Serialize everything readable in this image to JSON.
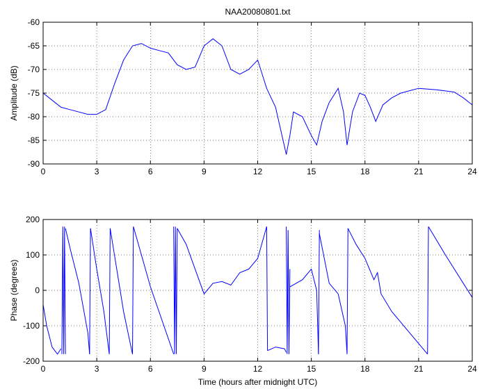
{
  "chart_data": [
    {
      "type": "line",
      "title": "NAA20080801.txt",
      "xlabel": "",
      "ylabel": "Amplitude (dB)",
      "xlim": [
        0,
        24
      ],
      "ylim": [
        -90,
        -60
      ],
      "xticks": [
        0,
        3,
        6,
        9,
        12,
        15,
        18,
        21,
        24
      ],
      "yticks": [
        -90,
        -85,
        -80,
        -75,
        -70,
        -65,
        -60
      ],
      "grid": true,
      "color": "#0000ff",
      "series": [
        {
          "x": [
            0,
            0.5,
            1,
            1.5,
            2,
            2.5,
            3,
            3.5,
            4,
            4.5,
            5,
            5.5,
            6,
            6.5,
            7,
            7.5,
            8,
            8.5,
            9,
            9.5,
            10,
            10.5,
            11,
            11.5,
            12,
            12.5,
            13,
            13.3,
            13.6,
            13.8,
            14,
            14.5,
            15,
            15.3,
            15.6,
            16,
            16.5,
            16.8,
            17,
            17.3,
            17.7,
            18,
            18.3,
            18.6,
            19,
            19.5,
            20,
            21,
            22,
            23,
            23.5,
            24
          ],
          "y": [
            -75,
            -76.5,
            -78,
            -78.5,
            -79,
            -79.5,
            -79.5,
            -78.5,
            -73,
            -68,
            -65,
            -64.5,
            -65.5,
            -66,
            -66.5,
            -69,
            -70,
            -69.5,
            -65,
            -63.5,
            -65,
            -70,
            -71,
            -70,
            -68,
            -74,
            -78,
            -83,
            -88,
            -84,
            -79,
            -80,
            -84,
            -86,
            -81,
            -77,
            -74,
            -79,
            -86,
            -79,
            -75,
            -75.5,
            -78,
            -81,
            -77.5,
            -76,
            -75,
            -74,
            -74.3,
            -74.8,
            -76,
            -77.5
          ]
        }
      ]
    },
    {
      "type": "line",
      "title": "",
      "xlabel": "Time (hours after midnight UTC)",
      "ylabel": "Phase (degrees)",
      "xlim": [
        0,
        24
      ],
      "ylim": [
        -200,
        200
      ],
      "xticks": [
        0,
        3,
        6,
        9,
        12,
        15,
        18,
        21,
        24
      ],
      "yticks": [
        -200,
        -100,
        0,
        100,
        200
      ],
      "grid": true,
      "color": "#0000ff",
      "series": [
        {
          "segments": [
            {
              "x": [
                0,
                0.2,
                0.5,
                0.8,
                1.0
              ],
              "y": [
                -40,
                -100,
                -160,
                -180,
                -165
              ]
            },
            {
              "x": [
                1.05,
                1.1,
                1.15,
                1.2,
                1.25
              ],
              "y": [
                -180,
                180,
                -180,
                180,
                -180
              ]
            },
            {
              "x": [
                1.25,
                1.5,
                2.0,
                2.5,
                2.6
              ],
              "y": [
                175,
                120,
                20,
                -120,
                -180
              ]
            },
            {
              "x": [
                2.6,
                2.65
              ],
              "y": [
                -180,
                175
              ]
            },
            {
              "x": [
                2.65,
                3.0,
                3.4,
                3.7
              ],
              "y": [
                175,
                60,
                -60,
                -180
              ]
            },
            {
              "x": [
                3.7,
                3.75
              ],
              "y": [
                -180,
                175
              ]
            },
            {
              "x": [
                3.75,
                4.5,
                5.0
              ],
              "y": [
                175,
                -60,
                -180
              ]
            },
            {
              "x": [
                5.0,
                5.05
              ],
              "y": [
                -180,
                180
              ]
            },
            {
              "x": [
                5.05,
                6.0,
                7.3
              ],
              "y": [
                180,
                10,
                -180
              ]
            },
            {
              "x": [
                7.3,
                7.35,
                7.4,
                7.45,
                7.5
              ],
              "y": [
                180,
                -180,
                180,
                -180,
                175
              ]
            },
            {
              "x": [
                7.5,
                8.0,
                8.5,
                9.0,
                9.5,
                10.0,
                10.5,
                11.0,
                11.5,
                12.0,
                12.5
              ],
              "y": [
                175,
                130,
                60,
                -10,
                20,
                25,
                15,
                50,
                60,
                90,
                180
              ]
            },
            {
              "x": [
                12.5,
                12.55
              ],
              "y": [
                180,
                -170
              ]
            },
            {
              "x": [
                12.55,
                13.0,
                13.5,
                13.6
              ],
              "y": [
                -170,
                -160,
                -165,
                -175
              ]
            },
            {
              "x": [
                13.6,
                13.65,
                13.7,
                13.75,
                13.8
              ],
              "y": [
                180,
                -180,
                170,
                -180,
                60
              ]
            },
            {
              "x": [
                13.8,
                14.5,
                15.0,
                15.3,
                15.4
              ],
              "y": [
                10,
                30,
                60,
                0,
                -180
              ]
            },
            {
              "x": [
                15.4,
                15.45
              ],
              "y": [
                -180,
                170
              ]
            },
            {
              "x": [
                15.45,
                16.0,
                16.5,
                16.9,
                17.0
              ],
              "y": [
                160,
                20,
                -10,
                -100,
                -180
              ]
            },
            {
              "x": [
                17.0,
                17.05
              ],
              "y": [
                -180,
                175
              ]
            },
            {
              "x": [
                17.05,
                17.5,
                18.0,
                18.5,
                18.7,
                18.9,
                19.5,
                20.5,
                21.5
              ],
              "y": [
                175,
                130,
                90,
                30,
                50,
                -10,
                -60,
                -120,
                -180
              ]
            },
            {
              "x": [
                21.5,
                21.55
              ],
              "y": [
                -180,
                180
              ]
            },
            {
              "x": [
                21.55,
                22.5,
                23.5,
                24.0
              ],
              "y": [
                180,
                100,
                20,
                -20
              ]
            }
          ]
        }
      ]
    }
  ]
}
